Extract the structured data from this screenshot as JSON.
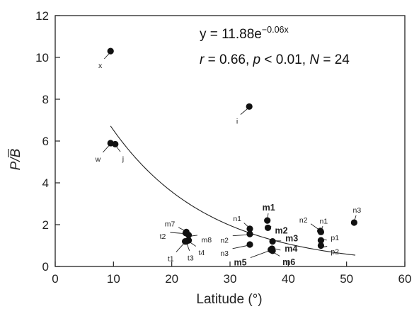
{
  "chart_data": {
    "type": "scatter",
    "xlabel": "Latitude (°)",
    "ylabel_main": "P/",
    "ylabel_bar": "B",
    "xlim": [
      0,
      60
    ],
    "ylim": [
      0,
      12
    ],
    "xticks": [
      0,
      10,
      20,
      30,
      40,
      50,
      60
    ],
    "yticks": [
      0,
      2,
      4,
      6,
      8,
      10,
      12
    ],
    "grid": false,
    "equation": {
      "prefix": "y = 11.88e",
      "exponent": "−0.06x"
    },
    "stats": {
      "r_symbol": "r",
      "r_value": " = 0.66, ",
      "p_symbol": "p",
      "p_value": " < 0.01, ",
      "n_symbol": "N",
      "n_value": " = 24"
    },
    "fit": {
      "a": 11.88,
      "b": -0.06,
      "x_range": [
        9.5,
        51.5
      ]
    },
    "points": [
      {
        "label": "x",
        "x": 9.5,
        "y": 10.3,
        "bold": false
      },
      {
        "label": "i",
        "x": 33.3,
        "y": 7.65,
        "bold": false
      },
      {
        "label": "w",
        "x": 9.5,
        "y": 5.9,
        "bold": false
      },
      {
        "label": "j",
        "x": 10.3,
        "y": 5.85,
        "bold": false
      },
      {
        "label": "m7",
        "x": 22.5,
        "y": 1.65,
        "bold": false
      },
      {
        "label": "m8",
        "x": 22.9,
        "y": 1.5,
        "bold": false
      },
      {
        "label": "t2",
        "x": 22.4,
        "y": 1.6,
        "bold": false
      },
      {
        "label": "t4",
        "x": 22.9,
        "y": 1.25,
        "bold": false
      },
      {
        "label": "t3",
        "x": 22.5,
        "y": 1.2,
        "bold": false
      },
      {
        "label": "t1",
        "x": 22.3,
        "y": 1.2,
        "bold": false
      },
      {
        "label": "n1",
        "x": 33.4,
        "y": 1.8,
        "bold": false
      },
      {
        "label": "n2",
        "x": 33.4,
        "y": 1.55,
        "bold": false
      },
      {
        "label": "n3",
        "x": 33.4,
        "y": 1.05,
        "bold": false
      },
      {
        "label": "m1",
        "x": 36.4,
        "y": 2.2,
        "bold": true
      },
      {
        "label": "m2",
        "x": 36.5,
        "y": 1.85,
        "bold": true
      },
      {
        "label": "m3",
        "x": 37.3,
        "y": 1.2,
        "bold": true
      },
      {
        "label": "m4",
        "x": 37.2,
        "y": 0.85,
        "bold": true
      },
      {
        "label": "m6",
        "x": 37.3,
        "y": 0.75,
        "bold": true
      },
      {
        "label": "m5",
        "x": 37.0,
        "y": 0.8,
        "bold": true
      },
      {
        "label": "n2",
        "x": 45.5,
        "y": 1.7,
        "bold": false
      },
      {
        "label": "n1",
        "x": 45.6,
        "y": 1.65,
        "bold": false
      },
      {
        "label": "p1",
        "x": 45.6,
        "y": 1.25,
        "bold": false
      },
      {
        "label": "p2",
        "x": 45.6,
        "y": 1.0,
        "bold": false
      },
      {
        "label": "n3",
        "x": 51.3,
        "y": 2.1,
        "bold": false
      }
    ]
  }
}
